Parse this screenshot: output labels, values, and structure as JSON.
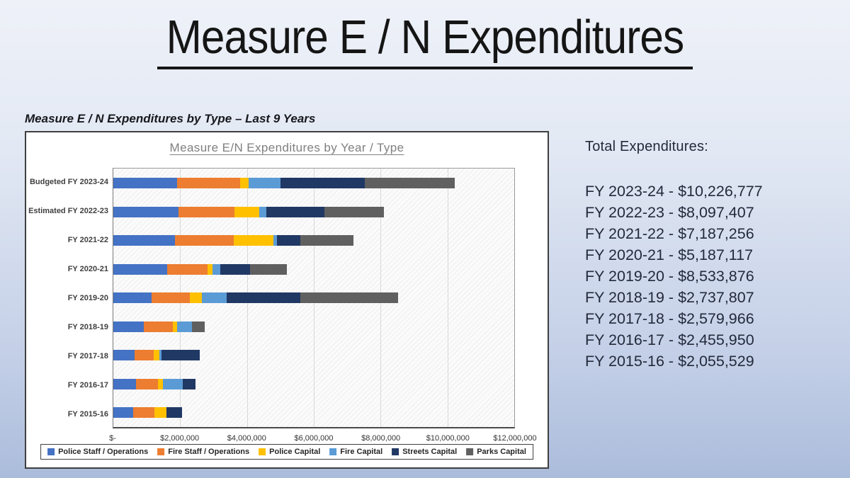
{
  "slide": {
    "title": "Measure E / N Expenditures",
    "subtitle": "Measure E / N Expenditures by Type – Last 9 Years"
  },
  "totals": {
    "heading": "Total Expenditures:",
    "lines": [
      "FY 2023-24 - $10,226,777",
      "FY 2022-23 - $8,097,407",
      "FY 2021-22 - $7,187,256",
      "FY 2020-21 - $5,187,117",
      "FY 2019-20 - $8,533,876",
      "FY 2018-19 - $2,737,807",
      "FY 2017-18 - $2,579,966",
      "FY 2016-17 - $2,455,950",
      "FY 2015-16 - $2,055,529"
    ]
  },
  "chart_data": {
    "type": "bar",
    "orientation": "horizontal-stacked",
    "title": "Measure E/N Expenditures by Year / Type",
    "categories": [
      "Budgeted FY 2023-24",
      "Estimated FY 2022-23",
      "FY 2021-22",
      "FY 2020-21",
      "FY 2019-20",
      "FY 2018-19",
      "FY 2017-18",
      "FY 2016-17",
      "FY 2015-16"
    ],
    "series": [
      {
        "name": "Police Staff / Operations",
        "color": "#4472C4",
        "values": [
          1900000,
          1960000,
          1840000,
          1620000,
          1150000,
          920000,
          640000,
          670000,
          590000
        ]
      },
      {
        "name": "Fire Staff / Operations",
        "color": "#ED7D31",
        "values": [
          1900000,
          1660000,
          1760000,
          1190000,
          1150000,
          870000,
          560000,
          670000,
          650000
        ]
      },
      {
        "name": "Police Capital",
        "color": "#FFC000",
        "values": [
          250000,
          750000,
          1200000,
          150000,
          340000,
          120000,
          180000,
          140000,
          340000
        ]
      },
      {
        "name": "Fire Capital",
        "color": "#5B9BD5",
        "values": [
          950000,
          200000,
          90000,
          250000,
          760000,
          440000,
          60000,
          600000,
          0
        ]
      },
      {
        "name": "Streets Capital",
        "color": "#203864",
        "values": [
          2520000,
          1750000,
          710000,
          890000,
          2190000,
          0,
          1139966,
          375950,
          475529
        ]
      },
      {
        "name": "Parks Capital",
        "color": "#606060",
        "values": [
          2706777,
          1777407,
          1587256,
          1087117,
          2943876,
          387807,
          0,
          0,
          0
        ]
      }
    ],
    "totals_by_category": [
      10226777,
      8097407,
      7187256,
      5187117,
      8533876,
      2737807,
      2579966,
      2455950,
      2055529
    ],
    "x_ticks": [
      "$-",
      "$2,000,000",
      "$4,000,000",
      "$6,000,000",
      "$8,000,000",
      "$10,000,000",
      "$12,000,000"
    ],
    "xlim": [
      0,
      12000000
    ],
    "grid": true,
    "legend_position": "bottom",
    "plot_hatch": "diagonal"
  }
}
